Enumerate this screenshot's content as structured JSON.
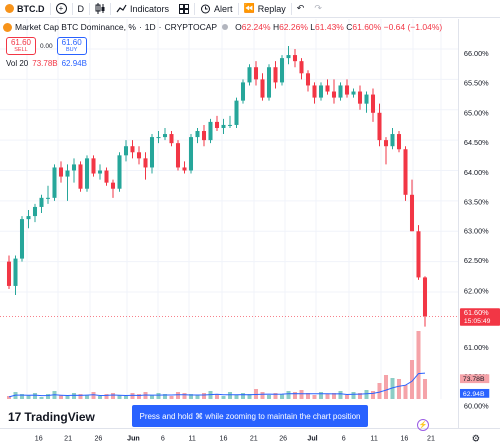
{
  "toolbar": {
    "symbol": "BTC.D",
    "interval": "D",
    "indicators_label": "Indicators",
    "alert_label": "Alert",
    "replay_label": "Replay"
  },
  "legend": {
    "title": "Market Cap BTC Dominance, %",
    "interval": "1D",
    "exchange": "CRYPTOCAP",
    "open_label": "O",
    "open": "62.24%",
    "high_label": "H",
    "high": "62.26%",
    "low_label": "L",
    "low": "61.43%",
    "close_label": "C",
    "close": "61.60%",
    "change": "−0.64 (−1.04%)"
  },
  "trade": {
    "sell_price": "61.60",
    "sell_label": "SELL",
    "spread": "0.00",
    "buy_price": "61.60",
    "buy_label": "BUY"
  },
  "volume_legend": {
    "label": "Vol 20",
    "volume": "73.78B",
    "ma": "62.94B"
  },
  "price_label": {
    "value": "61.60%",
    "countdown": "15:05:49"
  },
  "volume_labels": {
    "volume": "73.78B",
    "ma": "62.94B"
  },
  "branding": {
    "logo_text": "TradingView"
  },
  "toast": {
    "text": "Press and hold ⌘ while zooming to maintain the chart position"
  },
  "colors": {
    "up": "#26a69a",
    "down": "#f23645",
    "vol_up": "#8ccdc6",
    "vol_down": "#f5a3a9",
    "ma_line": "#2962ff"
  },
  "chart_data": {
    "type": "candlestick",
    "y_unit": "%",
    "ylim": [
      60.0,
      66.2
    ],
    "yticks": [
      "66.00%",
      "65.50%",
      "65.00%",
      "64.50%",
      "64.00%",
      "63.50%",
      "63.00%",
      "62.50%",
      "62.00%",
      "61.00%",
      "60.50%",
      "60.00%"
    ],
    "xticks": [
      "16",
      "21",
      "26",
      "Jun",
      "6",
      "11",
      "16",
      "21",
      "26",
      "Jul",
      "6",
      "11",
      "16",
      "21"
    ],
    "candles": [
      [
        62.5,
        62.6,
        62.05,
        62.1
      ],
      [
        62.1,
        62.6,
        61.95,
        62.55
      ],
      [
        62.55,
        63.25,
        62.5,
        63.2
      ],
      [
        63.2,
        63.35,
        63.05,
        63.25
      ],
      [
        63.25,
        63.45,
        63.15,
        63.4
      ],
      [
        63.4,
        63.6,
        63.3,
        63.55
      ],
      [
        63.55,
        63.75,
        63.45,
        63.55
      ],
      [
        63.55,
        64.1,
        63.5,
        64.05
      ],
      [
        64.05,
        64.15,
        63.8,
        63.9
      ],
      [
        63.9,
        64.1,
        63.5,
        64.0
      ],
      [
        64.0,
        64.2,
        63.8,
        64.1
      ],
      [
        64.1,
        64.15,
        63.65,
        63.7
      ],
      [
        63.7,
        64.25,
        63.65,
        64.2
      ],
      [
        64.2,
        64.25,
        63.9,
        63.95
      ],
      [
        63.95,
        64.1,
        63.85,
        64.0
      ],
      [
        64.0,
        64.05,
        63.75,
        63.8
      ],
      [
        63.8,
        63.85,
        63.55,
        63.7
      ],
      [
        63.7,
        64.3,
        63.65,
        64.25
      ],
      [
        64.25,
        64.5,
        64.15,
        64.4
      ],
      [
        64.4,
        64.5,
        64.2,
        64.3
      ],
      [
        64.3,
        64.4,
        64.1,
        64.2
      ],
      [
        64.2,
        64.3,
        63.85,
        64.05
      ],
      [
        64.05,
        64.6,
        63.95,
        64.55
      ],
      [
        64.55,
        64.65,
        64.45,
        64.55
      ],
      [
        64.55,
        64.7,
        64.5,
        64.6
      ],
      [
        64.6,
        64.65,
        64.4,
        64.45
      ],
      [
        64.45,
        64.5,
        64.0,
        64.05
      ],
      [
        64.05,
        64.15,
        63.95,
        64.0
      ],
      [
        64.0,
        64.6,
        63.95,
        64.55
      ],
      [
        64.55,
        64.7,
        64.45,
        64.65
      ],
      [
        64.65,
        64.75,
        64.4,
        64.5
      ],
      [
        64.5,
        64.85,
        64.45,
        64.8
      ],
      [
        64.8,
        64.9,
        64.65,
        64.7
      ],
      [
        64.7,
        64.85,
        64.6,
        64.75
      ],
      [
        64.75,
        64.9,
        64.7,
        64.75
      ],
      [
        64.75,
        65.2,
        64.7,
        65.15
      ],
      [
        65.15,
        65.5,
        65.1,
        65.45
      ],
      [
        65.45,
        65.75,
        65.4,
        65.7
      ],
      [
        65.7,
        65.8,
        65.4,
        65.5
      ],
      [
        65.5,
        65.6,
        65.15,
        65.2
      ],
      [
        65.2,
        65.75,
        65.15,
        65.7
      ],
      [
        65.7,
        65.8,
        65.35,
        65.45
      ],
      [
        65.45,
        65.9,
        65.4,
        65.85
      ],
      [
        65.85,
        66.05,
        65.75,
        65.9
      ],
      [
        65.9,
        66.0,
        65.7,
        65.8
      ],
      [
        65.8,
        65.85,
        65.5,
        65.6
      ],
      [
        65.6,
        65.65,
        65.3,
        65.4
      ],
      [
        65.4,
        65.45,
        65.1,
        65.2
      ],
      [
        65.2,
        65.45,
        65.15,
        65.4
      ],
      [
        65.4,
        65.5,
        65.25,
        65.3
      ],
      [
        65.3,
        65.5,
        65.1,
        65.2
      ],
      [
        65.2,
        65.45,
        65.15,
        65.4
      ],
      [
        65.4,
        65.5,
        65.2,
        65.25
      ],
      [
        65.25,
        65.35,
        65.2,
        65.3
      ],
      [
        65.3,
        65.4,
        65.0,
        65.1
      ],
      [
        65.1,
        65.3,
        64.95,
        65.25
      ],
      [
        65.25,
        65.35,
        64.8,
        64.95
      ],
      [
        64.95,
        65.1,
        64.4,
        64.5
      ],
      [
        64.5,
        64.55,
        64.1,
        64.4
      ],
      [
        64.4,
        64.7,
        64.35,
        64.6
      ],
      [
        64.6,
        64.65,
        64.3,
        64.35
      ],
      [
        64.35,
        64.4,
        63.5,
        63.6
      ],
      [
        63.6,
        63.85,
        63.0,
        63.0
      ],
      [
        63.0,
        63.1,
        62.2,
        62.24
      ],
      [
        62.24,
        62.26,
        61.43,
        61.6
      ]
    ],
    "volume_max": 75.0
  }
}
